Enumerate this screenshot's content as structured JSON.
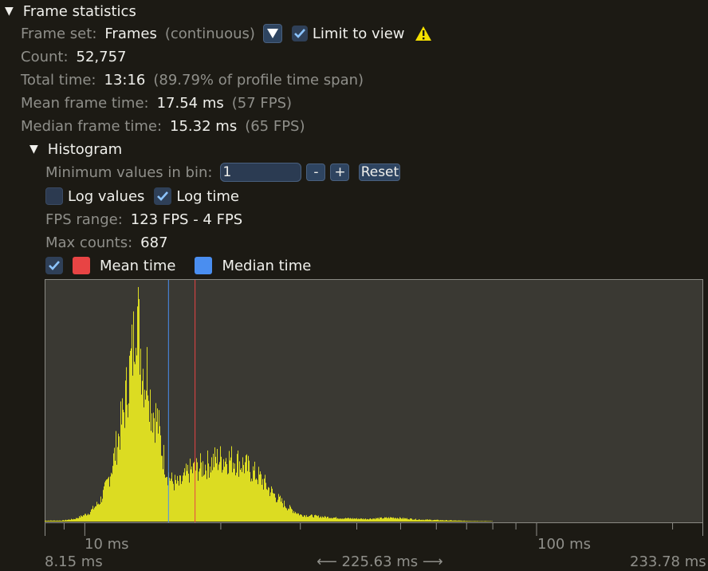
{
  "section": {
    "title": "Frame statistics"
  },
  "frame_set": {
    "label": "Frame set:",
    "name": "Frames",
    "mode": "(continuous)",
    "limit_label": "Limit to view"
  },
  "count": {
    "label": "Count:",
    "value": "52,757"
  },
  "total_time": {
    "label": "Total time:",
    "value": "13:16",
    "note": "(89.79% of profile time span)"
  },
  "mean": {
    "label": "Mean frame time:",
    "value": "17.54 ms",
    "note": "(57 FPS)"
  },
  "median": {
    "label": "Median frame time:",
    "value": "15.32 ms",
    "note": "(65 FPS)"
  },
  "histogram": {
    "title": "Histogram",
    "min_bin_label": "Minimum values in bin:",
    "min_bin_value": "1",
    "minus": "-",
    "plus": "+",
    "reset": "Reset",
    "log_values": "Log values",
    "log_time": "Log time",
    "fps_label": "FPS range:",
    "fps_value": "123 FPS - 4 FPS",
    "max_label": "Max counts:",
    "max_value": "687",
    "mean_time_label": "Mean time",
    "median_time_label": "Median time"
  },
  "colors": {
    "bars": "#dcdc22",
    "mean": "#e84444",
    "median": "#4a8ef0",
    "plot_bg": "#3a3933",
    "warning": "#f4e000"
  },
  "axis": {
    "tick10": "10 ms",
    "tick100": "100 ms",
    "min": "8.15 ms",
    "span": "225.63 ms",
    "max": "233.78 ms"
  },
  "chart_data": {
    "type": "bar",
    "x_scale": "log",
    "xlim_ms": [
      8.15,
      233.78
    ],
    "ylim": [
      0,
      687
    ],
    "mean_ms": 17.54,
    "median_ms": 15.32,
    "x_ms": [
      8.9,
      9.5,
      10.2,
      10.8,
      11.2,
      11.6,
      11.9,
      12.2,
      12.5,
      12.8,
      13.0,
      13.2,
      13.4,
      13.6,
      13.8,
      14.0,
      14.2,
      14.5,
      14.8,
      15.2,
      15.6,
      16.2,
      17.0,
      17.8,
      18.6,
      19.5,
      20.5,
      21.5,
      22.5,
      23.5,
      24.5,
      25.5,
      26.5,
      28.0,
      30.0,
      33.0,
      37.0,
      42.0,
      48.0,
      55.0,
      62.0,
      70.0,
      80.0
    ],
    "values": [
      3,
      8,
      25,
      60,
      110,
      190,
      260,
      330,
      430,
      520,
      687,
      560,
      480,
      420,
      470,
      350,
      330,
      300,
      220,
      150,
      120,
      110,
      150,
      160,
      170,
      185,
      190,
      185,
      170,
      150,
      130,
      100,
      75,
      45,
      20,
      15,
      10,
      8,
      12,
      6,
      4,
      2,
      1
    ]
  }
}
